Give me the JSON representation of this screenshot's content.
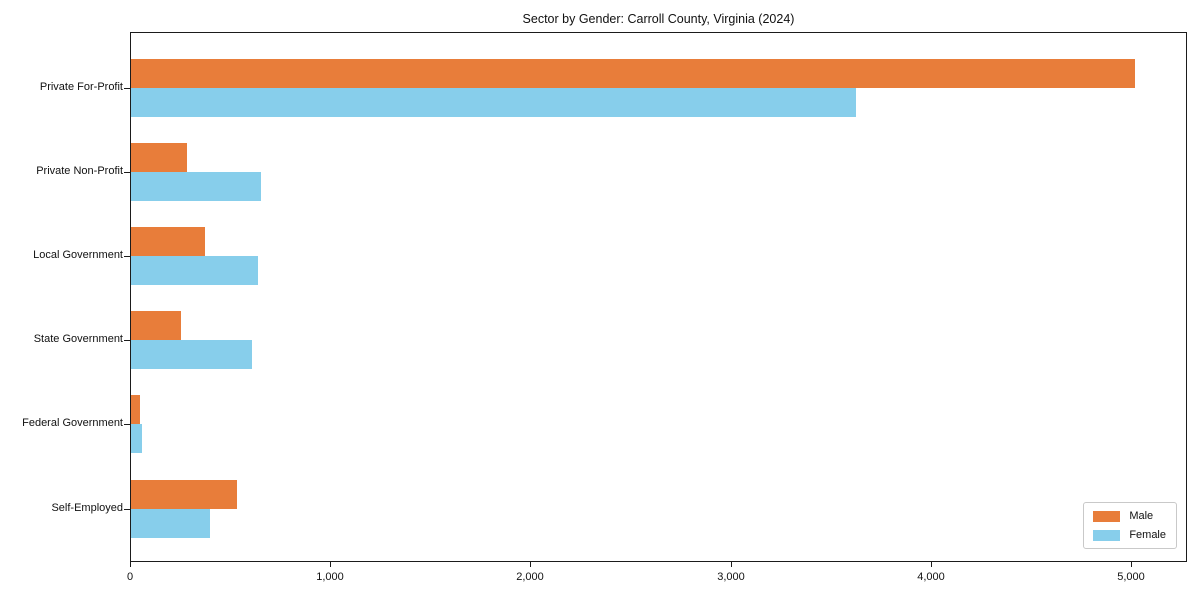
{
  "chart_data": {
    "type": "bar",
    "orientation": "horizontal",
    "title": "Sector by Gender: Carroll County, Virginia (2024)",
    "categories": [
      "Private For-Profit",
      "Private Non-Profit",
      "Local Government",
      "State Government",
      "Federal Government",
      "Self-Employed"
    ],
    "series": [
      {
        "name": "Male",
        "color": "#e87d3a",
        "values": [
          5015,
          280,
          370,
          250,
          45,
          530
        ]
      },
      {
        "name": "Female",
        "color": "#87ceeb",
        "values": [
          3620,
          650,
          635,
          605,
          55,
          395
        ]
      }
    ],
    "xlabel": "",
    "ylabel": "",
    "xlim": [
      0,
      5270
    ],
    "x_ticks": [
      0,
      1000,
      2000,
      3000,
      4000,
      5000
    ],
    "x_tick_labels": [
      "0",
      "1,000",
      "2,000",
      "3,000",
      "4,000",
      "5,000"
    ],
    "grid": false,
    "background_color": "#ffffff",
    "spine_color": "#1b1b1b",
    "legend": {
      "position": "lower right",
      "entries": [
        "Male",
        "Female"
      ]
    }
  }
}
